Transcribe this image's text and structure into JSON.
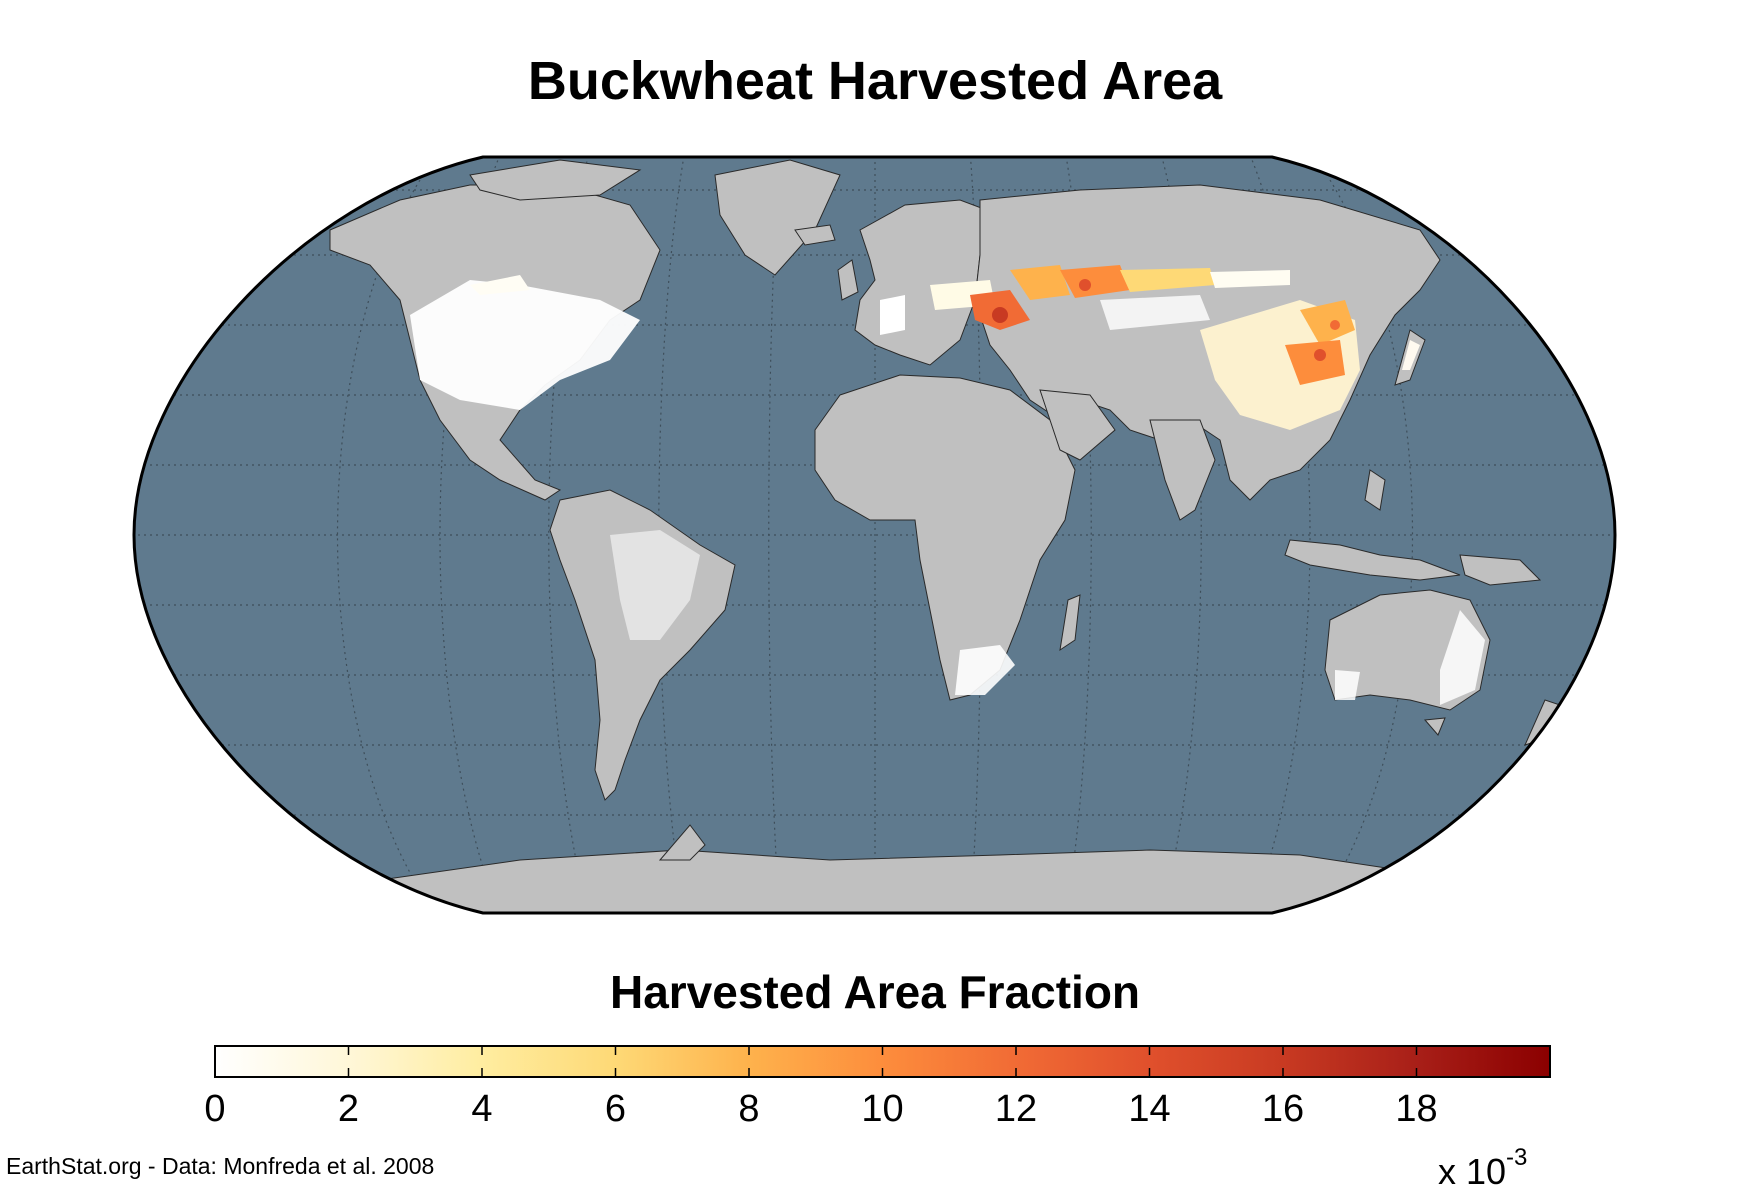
{
  "title": "Buckwheat Harvested Area",
  "legend": {
    "title": "Harvested Area Fraction",
    "ticks": [
      "0",
      "2",
      "4",
      "6",
      "8",
      "10",
      "12",
      "14",
      "16",
      "18"
    ],
    "range": [
      0,
      20
    ],
    "multiplier_base": "x 10",
    "multiplier_exponent": "-3",
    "colors": [
      "#ffffff",
      "#fff7d8",
      "#ffeda0",
      "#fed976",
      "#feb24c",
      "#fd8d3c",
      "#f16b35",
      "#e0502c",
      "#c83a22",
      "#a81f18",
      "#8b0000"
    ]
  },
  "credit": "EarthStat.org - Data: Monfreda et al. 2008",
  "colors": {
    "ocean": "#5f7a8e",
    "land": "#c0c0c0",
    "border": "#000000"
  }
}
